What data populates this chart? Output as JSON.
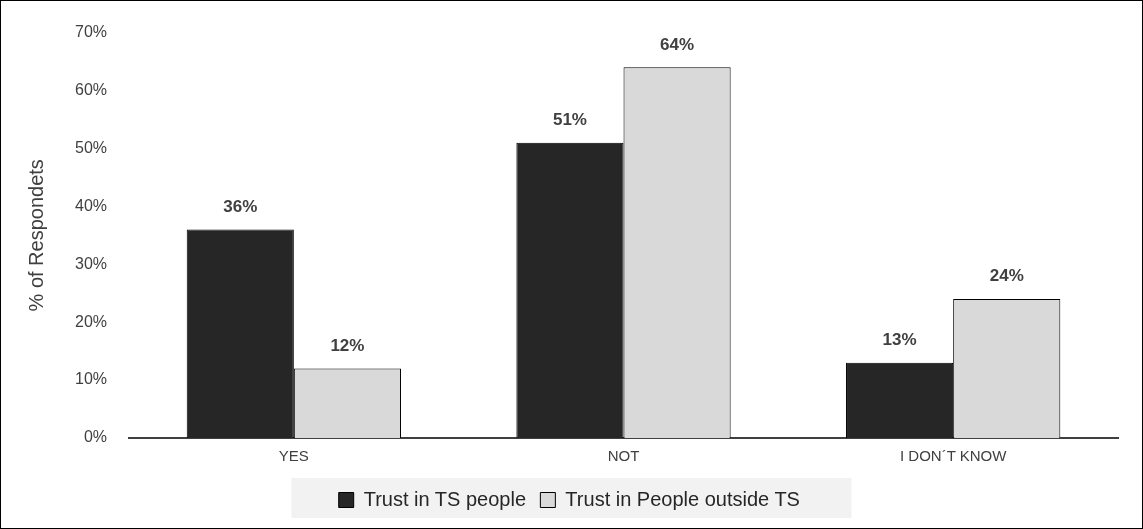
{
  "chart_data": {
    "type": "bar",
    "ylabel": "% of Respondets",
    "categories": [
      "YES",
      "NOT",
      "I DON´T KNOW"
    ],
    "series": [
      {
        "name": "Trust in TS people",
        "color": "#262626",
        "values": [
          36,
          51,
          13
        ],
        "value_labels": [
          "36%",
          "51%",
          "13%"
        ]
      },
      {
        "name": "Trust in People outside TS",
        "color": "#d9d9d9",
        "values": [
          12,
          64,
          24
        ],
        "value_labels": [
          "12%",
          "64%",
          "24%"
        ]
      }
    ],
    "ylim": [
      0,
      70
    ],
    "yticks": [
      {
        "value": 0,
        "label": "0%"
      },
      {
        "value": 10,
        "label": "10%"
      },
      {
        "value": 20,
        "label": "20%"
      },
      {
        "value": 30,
        "label": "30%"
      },
      {
        "value": 40,
        "label": "40%"
      },
      {
        "value": 50,
        "label": "50%"
      },
      {
        "value": 60,
        "label": "60%"
      },
      {
        "value": 70,
        "label": "70%"
      }
    ],
    "grid": false,
    "legend": "bottom"
  }
}
